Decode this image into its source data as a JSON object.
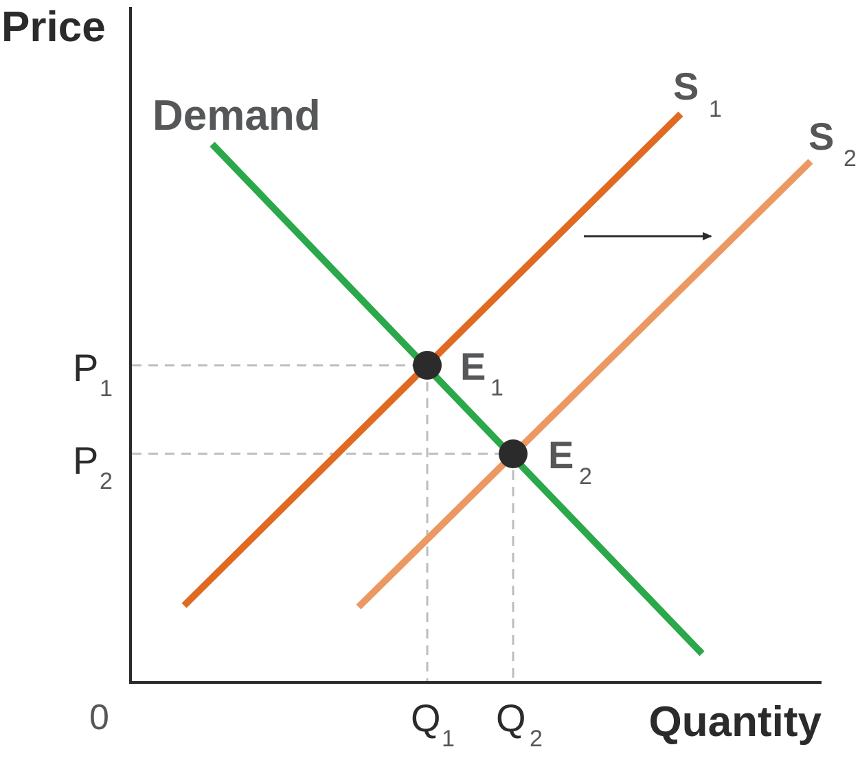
{
  "axes": {
    "y_label": "Price",
    "x_label": "Quantity",
    "origin_label": "0",
    "color": "#2b2b2b"
  },
  "curves": {
    "demand": {
      "label": "Demand",
      "color": "#2aa84a"
    },
    "supply_1": {
      "label": "S",
      "subscript": "1",
      "color": "#e06a22"
    },
    "supply_2": {
      "label": "S",
      "subscript": "2",
      "color": "#ec9862"
    }
  },
  "equilibria": [
    {
      "label": "E",
      "subscript": "1"
    },
    {
      "label": "E",
      "subscript": "2"
    }
  ],
  "price_levels": [
    {
      "label": "P",
      "subscript": "1"
    },
    {
      "label": "P",
      "subscript": "2"
    }
  ],
  "quantity_levels": [
    {
      "label": "Q",
      "subscript": "1"
    },
    {
      "label": "Q",
      "subscript": "2"
    }
  ],
  "shift": {
    "direction": "right",
    "color": "#2b2b2b"
  },
  "colors": {
    "text": "#555759",
    "guide": "#bdbdbd",
    "point": "#2b2b2b"
  }
}
